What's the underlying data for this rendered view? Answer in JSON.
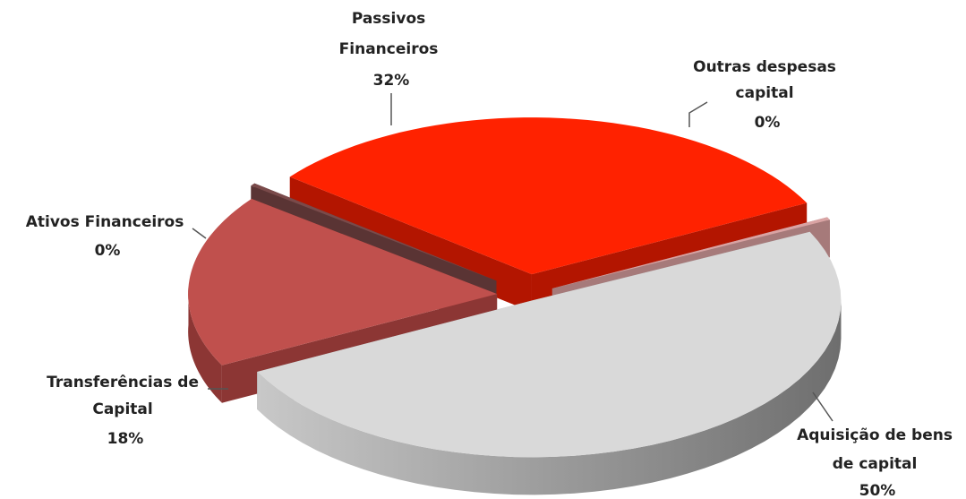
{
  "chart_data": {
    "type": "pie",
    "style": "3d-exploded",
    "slices": [
      {
        "name": "Passivos Financeiros",
        "label_lines": [
          "Passivos",
          "Financeiros"
        ],
        "value": 32,
        "pct_label": "32%",
        "color": "#ff2200",
        "side_color": "#b31500"
      },
      {
        "name": "Outras despesas capital",
        "label_lines": [
          "Outras despesas",
          "capital"
        ],
        "value": 0.3,
        "pct_label": "0%",
        "color": "#d9a3a3",
        "side_color": "#a67a7a"
      },
      {
        "name": "Aquisição de bens de capital",
        "label_lines": [
          "Aquisição de bens",
          "de capital"
        ],
        "value": 50,
        "pct_label": "50%",
        "color": "#d9d9d9",
        "side_color": "#9a9a9a"
      },
      {
        "name": "Transferências de Capital",
        "label_lines": [
          "Transferências de",
          "Capital"
        ],
        "value": 18,
        "pct_label": "18%",
        "color": "#c0504d",
        "side_color": "#8c3634"
      },
      {
        "name": "Ativos Financeiros",
        "label_lines": [
          "Ativos Financeiros"
        ],
        "value": 0.3,
        "pct_label": "0%",
        "color": "#7a4a4a",
        "side_color": "#5a3434"
      }
    ]
  }
}
